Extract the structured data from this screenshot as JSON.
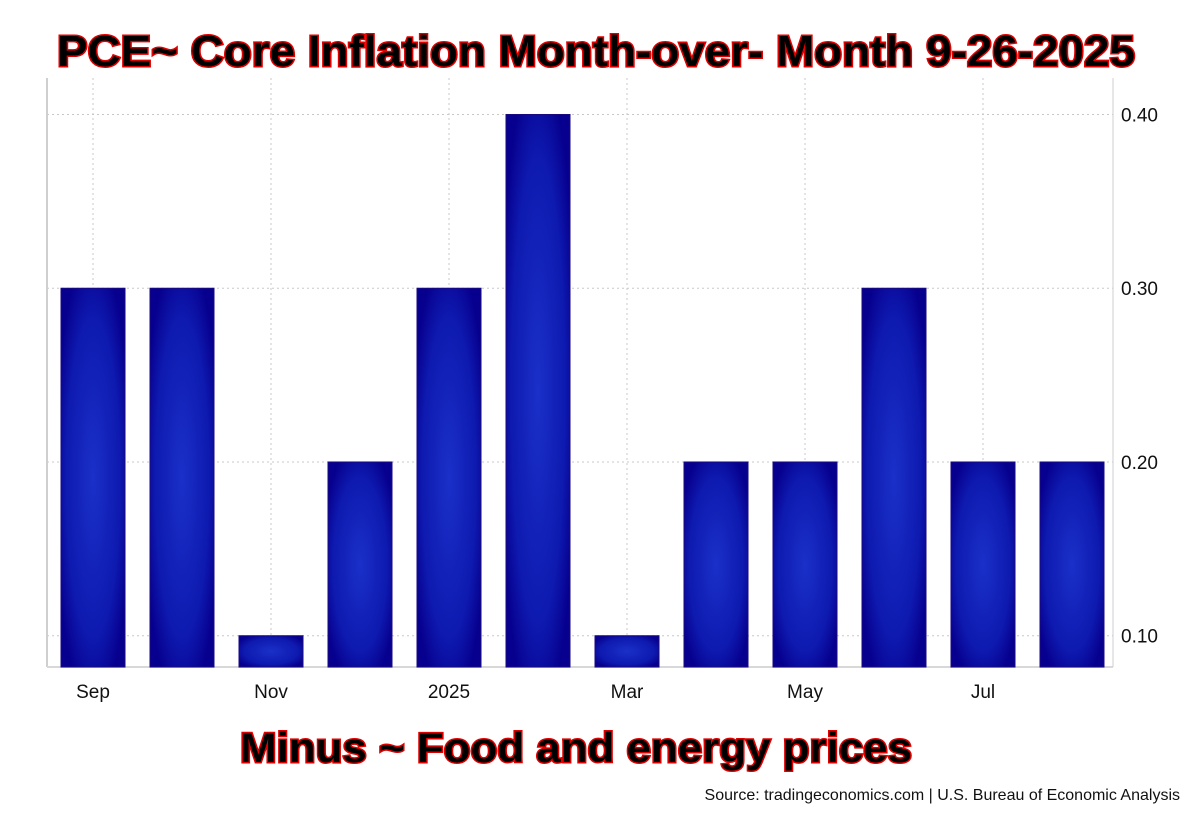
{
  "chart_data": {
    "type": "bar",
    "title": "PCE~ Core Inflation Month-over- Month 9-26-2025",
    "subtitle": "Minus ~ Food and energy prices",
    "source": "Source: tradingeconomics.com | U.S. Bureau of Economic Analysis",
    "categories": [
      "Sep 2024",
      "Oct 2024",
      "Nov 2024",
      "Dec 2024",
      "Jan 2025",
      "Feb 2025",
      "Mar 2025",
      "Apr 2025",
      "May 2025",
      "Jun 2025",
      "Jul 2025",
      "Aug 2025"
    ],
    "values": [
      0.3,
      0.3,
      0.1,
      0.2,
      0.3,
      0.4,
      0.1,
      0.2,
      0.2,
      0.3,
      0.2,
      0.2
    ],
    "x_tick_labels": [
      {
        "index": 0,
        "label": "Sep"
      },
      {
        "index": 2,
        "label": "Nov"
      },
      {
        "index": 4,
        "label": "2025"
      },
      {
        "index": 6,
        "label": "Mar"
      },
      {
        "index": 8,
        "label": "May"
      },
      {
        "index": 10,
        "label": "Jul"
      }
    ],
    "y_ticks": [
      {
        "value": 0.1,
        "label": "0.10"
      },
      {
        "value": 0.2,
        "label": "0.20"
      },
      {
        "value": 0.3,
        "label": "0.30"
      },
      {
        "value": 0.4,
        "label": "0.40"
      }
    ],
    "ylim": [
      0.082,
      0.421
    ],
    "xlabel": "",
    "ylabel": "",
    "grid": true,
    "y_axis_position": "right",
    "bar_color": "#0a0aa0"
  }
}
